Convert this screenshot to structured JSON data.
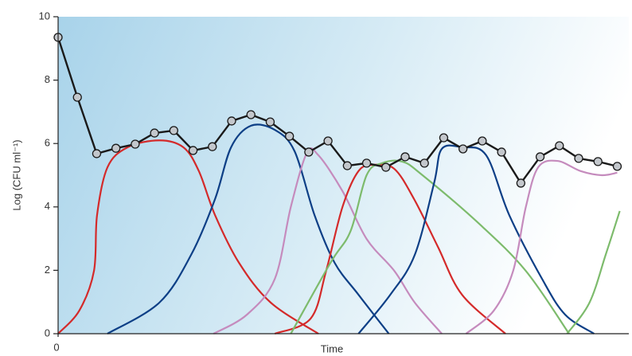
{
  "chart_data": {
    "type": "line",
    "y_label": "Log (CFU ml⁻¹)",
    "x_label": "Time",
    "xlim": [
      0,
      29.6
    ],
    "xticks": [
      0
    ],
    "ylim": [
      0,
      10
    ],
    "yticks": [
      0,
      2,
      4,
      6,
      8,
      10
    ],
    "series": [
      {
        "color": "#d42a2a",
        "x": [
          0,
          1.1,
          1.86,
          2.02,
          2.56,
          3.6,
          5.25,
          6.5,
          7.3,
          8.14,
          9.38,
          11.03,
          13.5
        ],
        "values": [
          0,
          0.73,
          1.98,
          3.74,
          5.25,
          5.88,
          6.1,
          5.88,
          5.13,
          3.74,
          2.24,
          0.98,
          0
        ]
      },
      {
        "color": "#0d3f86",
        "x": [
          2.56,
          5.25,
          6.9,
          8.14,
          8.97,
          10,
          11.24,
          12.27,
          13.3,
          14.34,
          15.58,
          17.15
        ],
        "values": [
          0,
          0.98,
          2.49,
          4.25,
          5.88,
          6.56,
          6.43,
          5.75,
          3.74,
          2.24,
          1.23,
          0
        ]
      },
      {
        "color": "#c58bbd",
        "x": [
          8.06,
          9.79,
          11.24,
          12.07,
          12.9,
          13.5,
          14.75,
          16,
          17.44,
          18.5,
          19.9
        ],
        "values": [
          0,
          0.6,
          1.73,
          4.0,
          5.7,
          5.63,
          4.5,
          2.99,
          1.98,
          0.98,
          0
        ]
      },
      {
        "color": "#d42a2a",
        "x": [
          11.24,
          13.1,
          13.9,
          14.75,
          15.58,
          16.4,
          17.44,
          18.46,
          19.7,
          20.95,
          23.2
        ],
        "values": [
          0,
          0.48,
          1.98,
          4.0,
          5.13,
          5.33,
          5.2,
          4.25,
          2.74,
          1.23,
          0
        ]
      },
      {
        "color": "#7dbb6c",
        "x": [
          12.07,
          14.13,
          15.17,
          16,
          16.8,
          17.85,
          18.9,
          21.8,
          24.26,
          26.5
        ],
        "values": [
          0,
          2.24,
          3.24,
          5.0,
          5.38,
          5.43,
          5.0,
          3.49,
          1.98,
          0
        ]
      },
      {
        "color": "#0d3f86",
        "x": [
          15.58,
          17.23,
          18.5,
          19.5,
          19.9,
          20.95,
          22.2,
          23.4,
          25.1,
          26.3,
          27.8
        ],
        "values": [
          0,
          1.23,
          2.49,
          4.75,
          5.83,
          5.88,
          5.63,
          3.74,
          1.73,
          0.6,
          0
        ]
      },
      {
        "color": "#c58bbd",
        "x": [
          21.16,
          22.6,
          23.6,
          24.26,
          24.9,
          25.9,
          27.1,
          28.2,
          29
        ],
        "values": [
          0,
          0.73,
          1.98,
          4.0,
          5.25,
          5.45,
          5.13,
          5.0,
          5.08
        ]
      },
      {
        "color": "#7dbb6c",
        "x": [
          26.4,
          27.56,
          28.4,
          29.13
        ],
        "values": [
          0,
          0.98,
          2.49,
          3.87
        ]
      },
      {
        "color": "#1a1a1a",
        "markers": true,
        "marker_color": "#c3c7cc",
        "x": [
          0,
          1,
          2,
          3,
          4,
          5,
          6,
          7,
          8,
          9,
          10,
          11,
          12,
          13,
          14,
          15,
          16,
          17,
          18,
          19,
          20,
          21,
          22,
          23,
          24,
          25,
          26,
          27,
          28,
          29
        ],
        "values": [
          9.35,
          7.46,
          5.68,
          5.85,
          5.98,
          6.33,
          6.41,
          5.78,
          5.9,
          6.71,
          6.91,
          6.68,
          6.23,
          5.73,
          6.08,
          5.3,
          5.38,
          5.25,
          5.58,
          5.38,
          6.18,
          5.83,
          6.08,
          5.73,
          4.75,
          5.58,
          5.93,
          5.53,
          5.43,
          5.28
        ]
      }
    ]
  }
}
